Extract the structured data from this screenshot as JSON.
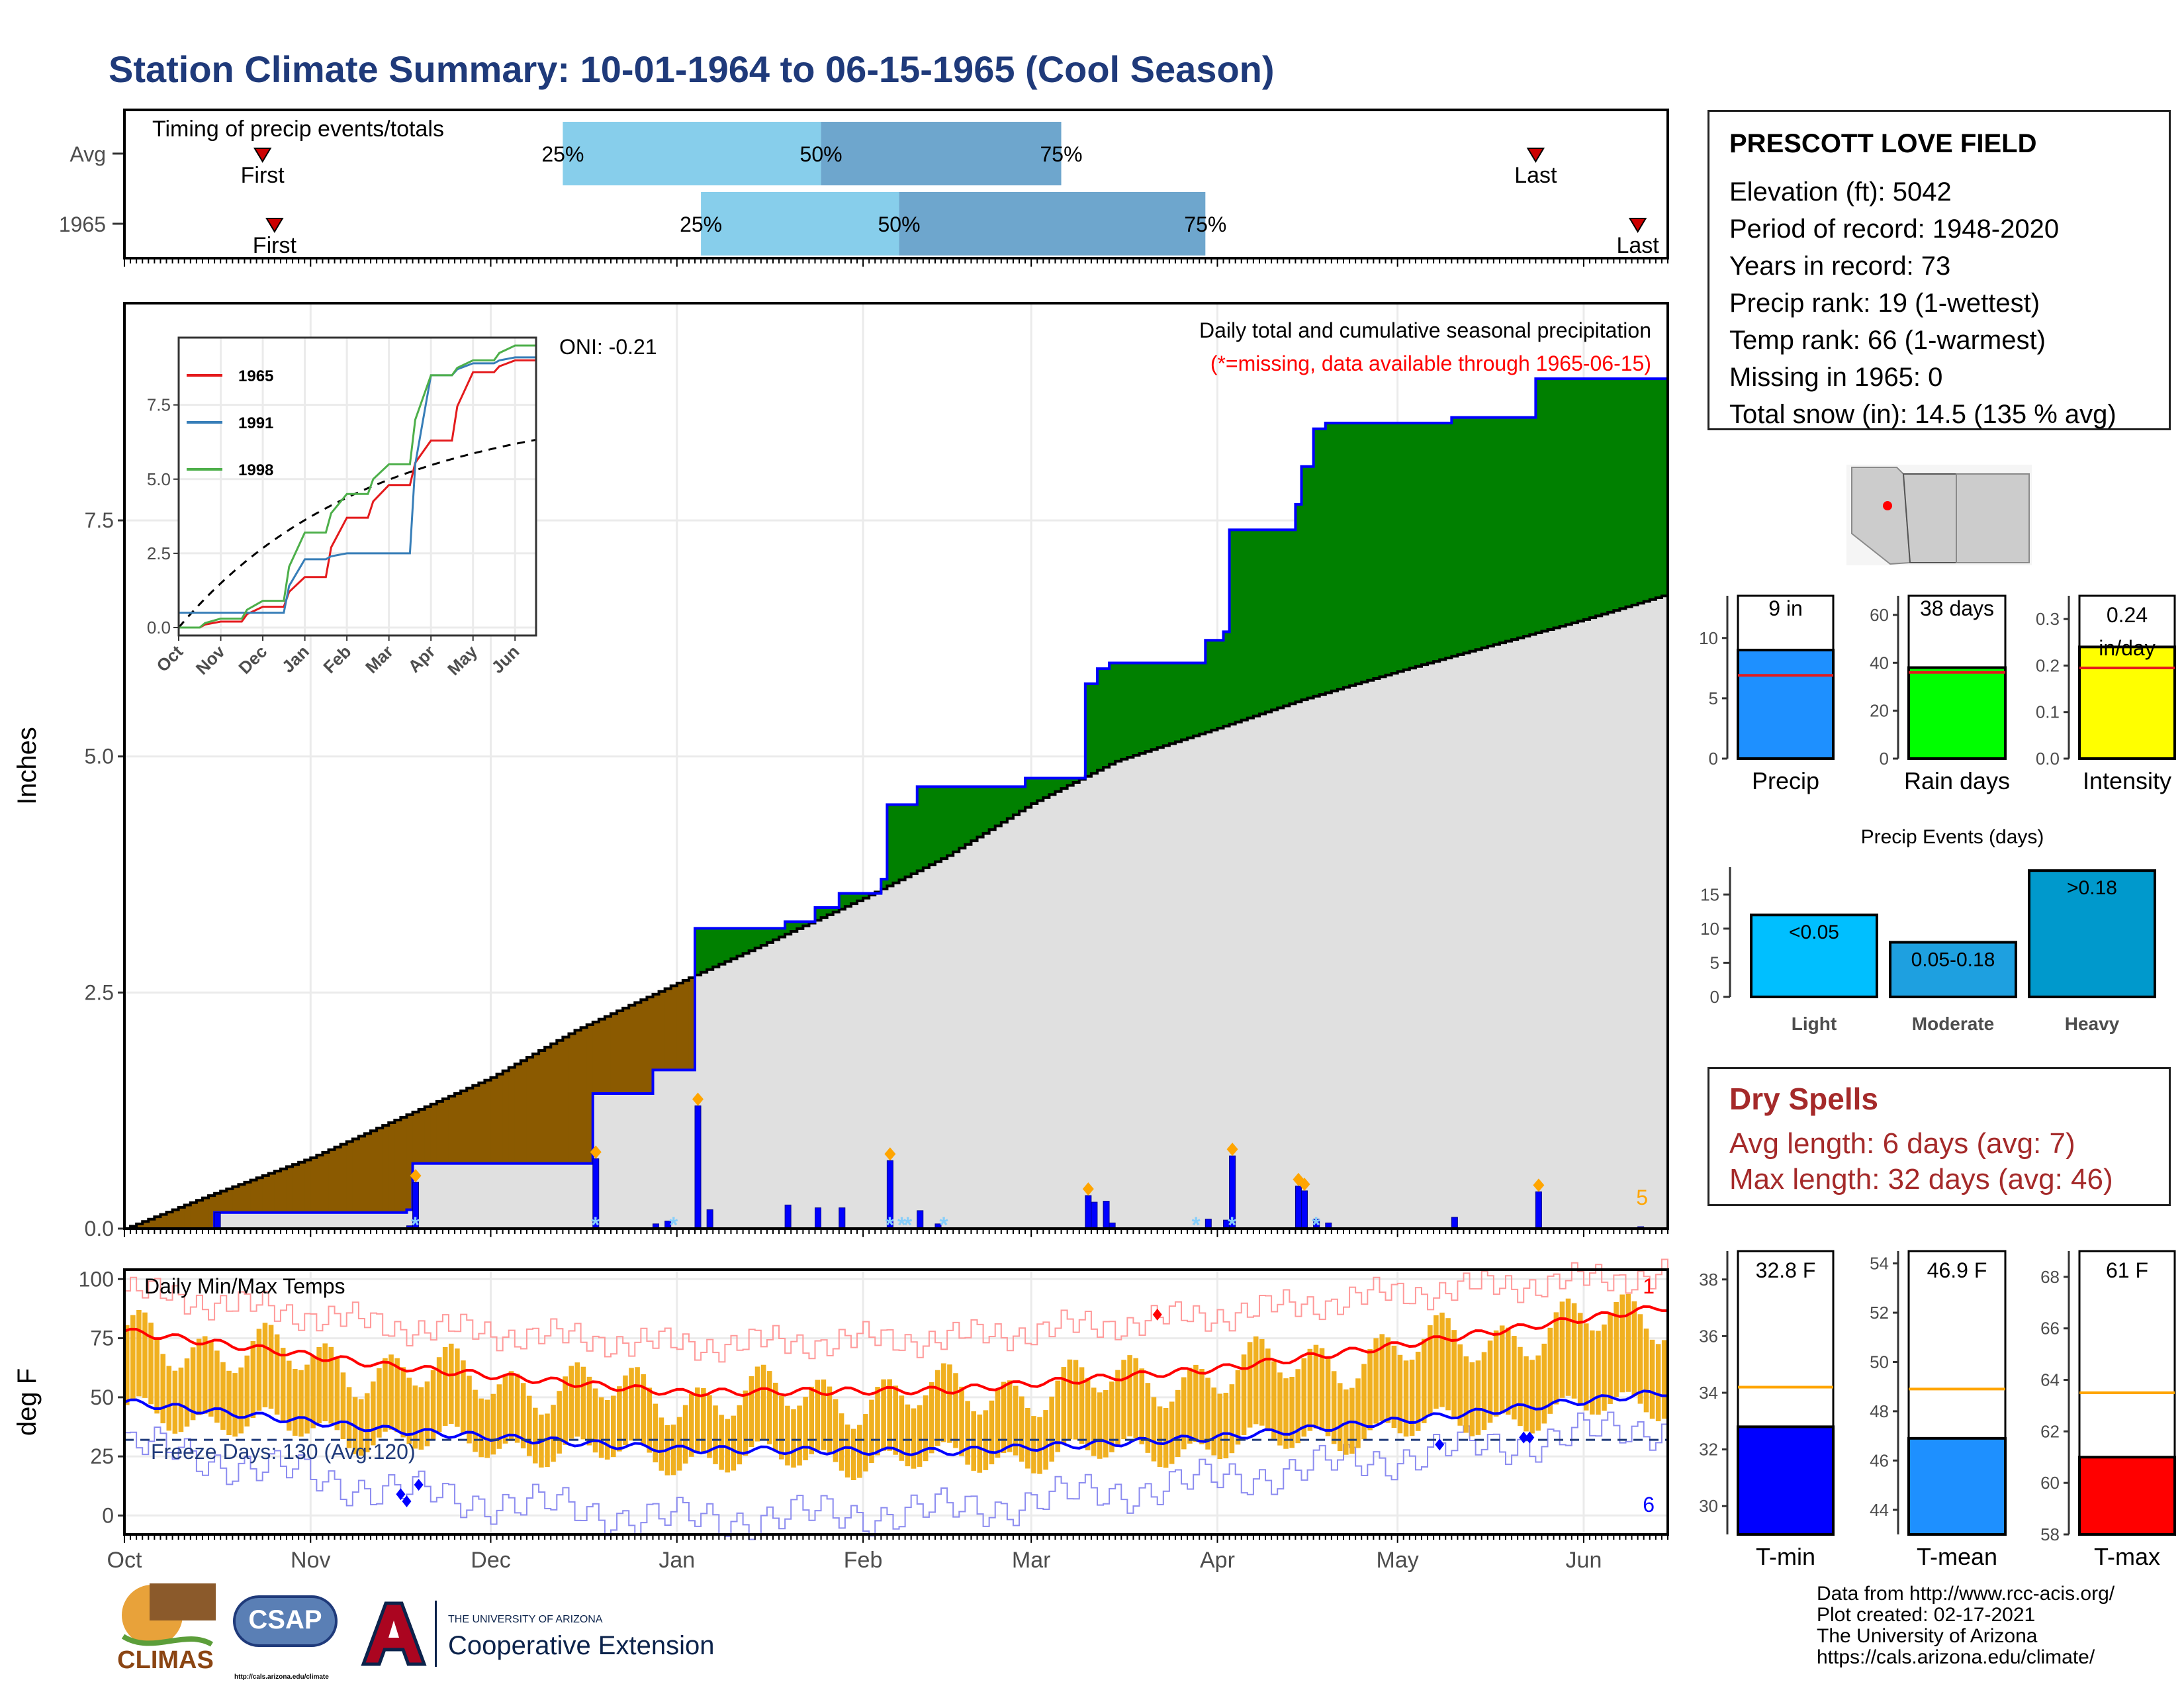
{
  "title": "Station Climate Summary: 10-01-1964 to 06-15-1965 (Cool Season)",
  "colors": {
    "title": "#1f3a7a",
    "q1": "#87ceeb",
    "q2": "#6ea6cd",
    "wet": "#008000",
    "dry": "#8b5a00",
    "cumavg": "#e0e0e0",
    "daily": "#0000ff",
    "snow": "#87cefa",
    "tmax": "#ff0000",
    "tmin": "#0000ff",
    "bar": "#f0b020",
    "red_marker": "#ff0000",
    "accent_brown": "#a52a2a"
  },
  "timing": {
    "label": "Timing of precip events/totals",
    "rows": [
      "Avg",
      "1965"
    ],
    "first_label": "First",
    "last_label": "Last",
    "q25": "25%",
    "q50": "50%",
    "q75": "75%",
    "avg": {
      "first": "1964-10-24",
      "q25": "1964-12-13",
      "q50": "1965-01-25",
      "q75": "1965-03-06",
      "last": "1965-05-24"
    },
    "y1965": {
      "first": "1964-10-26",
      "q25": "1965-01-05",
      "q50": "1965-02-07",
      "q75": "1965-03-30",
      "last": "1965-06-10"
    }
  },
  "station": {
    "name": "PRESCOTT LOVE FIELD",
    "lines": [
      "Elevation (ft): 5042",
      "Period of record: 1948-2020",
      "Years in record: 73",
      "Precip rank: 19 (1-wettest)",
      "Temp rank: 66 (1-warmest)",
      "Missing in 1965: 0",
      "Total snow (in): 14.5 (135 % avg)"
    ]
  },
  "precip_chart": {
    "ylabel": "Inches",
    "yticks": [
      "0.0",
      "2.5",
      "5.0",
      "7.5"
    ],
    "caption": "Daily total and cumulative seasonal precipitation",
    "missing_note": "(*=missing, data available through 1965-06-15)",
    "oni": "ONI: -0.21",
    "max_label": "5"
  },
  "inset": {
    "yticks": [
      "0.0",
      "2.5",
      "5.0",
      "7.5"
    ],
    "xticks": [
      "Oct",
      "Nov",
      "Dec",
      "Jan",
      "Feb",
      "Mar",
      "Apr",
      "May",
      "Jun"
    ],
    "legend": [
      "1965",
      "1991",
      "1998"
    ]
  },
  "temp_chart": {
    "ylabel": "deg F",
    "label": "Daily Min/Max Temps",
    "freeze": "Freeze Days: 130 (Avg:120)",
    "yticks": [
      "0",
      "25",
      "50",
      "75",
      "100"
    ],
    "max_count": "1",
    "min_count": "6"
  },
  "months": [
    "Oct",
    "Nov",
    "Dec",
    "Jan",
    "Feb",
    "Mar",
    "Apr",
    "May",
    "Jun"
  ],
  "summary_bars": [
    {
      "name": "Precip",
      "value": 9,
      "label": "9 in",
      "avg": 6.9,
      "ymax": 13.5,
      "ticks": [
        "0",
        "5",
        "10"
      ],
      "color": "#1e90ff"
    },
    {
      "name": "Rain days",
      "value": 38,
      "label": "38 days",
      "avg": 36,
      "ymax": 68,
      "ticks": [
        "0",
        "20",
        "40",
        "60"
      ],
      "color": "#00ff00"
    },
    {
      "name": "Intensity",
      "value": 0.24,
      "label": "0.24 in/day",
      "avg": 0.195,
      "ymax": 0.35,
      "ticks": [
        "0.0",
        "0.1",
        "0.2",
        "0.3"
      ],
      "color": "#ffff00"
    }
  ],
  "events": {
    "title": "Precip Events (days)",
    "ticks": [
      "0",
      "5",
      "10",
      "15"
    ],
    "bars": [
      {
        "name": "Light",
        "label": "<0.05",
        "value": 12,
        "color": "#00bfff"
      },
      {
        "name": "Moderate",
        "label": "0.05-0.18",
        "value": 8,
        "color": "#1ea0e0"
      },
      {
        "name": "Heavy",
        "label": ">0.18",
        "value": 18.5,
        "color": "#0099cc"
      }
    ]
  },
  "dry_spells": {
    "title": "Dry Spells",
    "avg": "Avg length: 6 days (avg: 7)",
    "max": "Max length: 32 days (avg: 46)"
  },
  "temp_bars": [
    {
      "name": "T-min",
      "value": 32.8,
      "label": "32.8 F",
      "avg": 34.2,
      "ymin": 29,
      "ymax": 39,
      "ticks": [
        "30",
        "32",
        "34",
        "36",
        "38"
      ],
      "color": "#0000ff"
    },
    {
      "name": "T-mean",
      "value": 46.9,
      "label": "46.9 F",
      "avg": 48.9,
      "ymin": 43,
      "ymax": 54.5,
      "ticks": [
        "44",
        "46",
        "48",
        "50",
        "52",
        "54"
      ],
      "color": "#1e90ff"
    },
    {
      "name": "T-max",
      "value": 61,
      "label": "61 F",
      "avg": 63.5,
      "ymin": 58,
      "ymax": 69,
      "ticks": [
        "58",
        "60",
        "62",
        "64",
        "66",
        "68"
      ],
      "color": "#ff0000"
    }
  ],
  "credits": [
    "Data from http://www.rcc-acis.org/",
    "Plot created: 02-17-2021",
    "The University of Arizona",
    "https://cals.arizona.edu/climate/"
  ],
  "logos": {
    "climas": "CLIMAS",
    "csap": "CSAP",
    "csap_url": "http://cals.arizona.edu/climate",
    "ua_small": "THE UNIVERSITY OF ARIZONA",
    "ua_big": "Cooperative Extension"
  },
  "chart_data": [
    {
      "type": "area",
      "title": "Daily total and cumulative seasonal precipitation",
      "ylabel": "Inches",
      "ylim": [
        0,
        9.8
      ],
      "x_range": [
        "1964-10-01",
        "1965-06-15"
      ],
      "cumulative_1965_steps": [
        [
          "1964-10-01",
          0
        ],
        [
          "1964-10-16",
          0.17
        ],
        [
          "1964-11-17",
          0.2
        ],
        [
          "1964-11-18",
          0.69
        ],
        [
          "1964-12-18",
          1.43
        ],
        [
          "1964-12-28",
          1.68
        ],
        [
          "1965-01-04",
          3.18
        ],
        [
          "1965-01-19",
          3.25
        ],
        [
          "1965-01-24",
          3.4
        ],
        [
          "1965-01-28",
          3.55
        ],
        [
          "1965-02-04",
          3.7
        ],
        [
          "1965-02-05",
          4.49
        ],
        [
          "1965-02-10",
          4.68
        ],
        [
          "1965-02-28",
          4.77
        ],
        [
          "1965-03-10",
          5.77
        ],
        [
          "1965-03-12",
          5.93
        ],
        [
          "1965-03-14",
          5.99
        ],
        [
          "1965-03-30",
          6.23
        ],
        [
          "1965-04-02",
          6.32
        ],
        [
          "1965-04-03",
          7.4
        ],
        [
          "1965-04-14",
          7.67
        ],
        [
          "1965-04-15",
          8.07
        ],
        [
          "1965-04-17",
          8.47
        ],
        [
          "1965-04-19",
          8.53
        ],
        [
          "1965-05-10",
          8.59
        ],
        [
          "1965-05-24",
          9.0
        ],
        [
          "1965-06-14",
          9.0
        ]
      ],
      "cumulative_avg": [
        [
          "1964-10-01",
          0
        ],
        [
          "1964-10-15",
          0.35
        ],
        [
          "1964-11-01",
          0.75
        ],
        [
          "1964-11-15",
          1.15
        ],
        [
          "1964-12-01",
          1.6
        ],
        [
          "1964-12-15",
          2.1
        ],
        [
          "1965-01-01",
          2.6
        ],
        [
          "1965-01-15",
          3.0
        ],
        [
          "1965-02-01",
          3.5
        ],
        [
          "1965-02-15",
          3.95
        ],
        [
          "1965-03-01",
          4.5
        ],
        [
          "1965-03-15",
          4.95
        ],
        [
          "1965-04-01",
          5.3
        ],
        [
          "1965-04-15",
          5.6
        ],
        [
          "1965-05-01",
          5.9
        ],
        [
          "1965-05-15",
          6.15
        ],
        [
          "1965-06-01",
          6.45
        ],
        [
          "1965-06-14",
          6.7
        ]
      ],
      "daily_precip": [
        [
          "1964-10-16",
          0.17
        ],
        [
          "1964-11-17",
          0.03
        ],
        [
          "1964-11-18",
          0.49
        ],
        [
          "1964-12-18",
          0.74
        ],
        [
          "1964-12-28",
          0.05
        ],
        [
          "1964-12-30",
          0.08
        ],
        [
          "1965-01-04",
          1.3
        ],
        [
          "1965-01-06",
          0.2
        ],
        [
          "1965-01-19",
          0.25
        ],
        [
          "1965-01-24",
          0.22
        ],
        [
          "1965-01-28",
          0.22
        ],
        [
          "1965-02-05",
          0.72
        ],
        [
          "1965-02-10",
          0.19
        ],
        [
          "1965-02-13",
          0.05
        ],
        [
          "1965-03-10",
          0.35
        ],
        [
          "1965-03-11",
          0.28
        ],
        [
          "1965-03-13",
          0.29
        ],
        [
          "1965-03-14",
          0.06
        ],
        [
          "1965-03-30",
          0.1
        ],
        [
          "1965-04-02",
          0.09
        ],
        [
          "1965-04-03",
          0.77
        ],
        [
          "1965-04-14",
          0.45
        ],
        [
          "1965-04-15",
          0.4
        ],
        [
          "1965-04-17",
          0.1
        ],
        [
          "1965-04-19",
          0.06
        ],
        [
          "1965-05-10",
          0.12
        ],
        [
          "1965-05-24",
          0.39
        ],
        [
          "1965-06-10",
          0.02
        ]
      ],
      "snow_markers": [
        "1964-11-18",
        "1964-12-18",
        "1964-12-31",
        "1965-02-05",
        "1965-02-07",
        "1965-02-08",
        "1965-02-14",
        "1965-03-28",
        "1965-04-03",
        "1965-04-17"
      ]
    },
    {
      "type": "line",
      "title": "",
      "x": [
        "Oct",
        "Nov",
        "Dec",
        "Jan",
        "Feb",
        "Mar",
        "Apr",
        "May",
        "Jun"
      ],
      "ylim": [
        0,
        9.5
      ],
      "series": [
        {
          "name": "1965",
          "values": [
            0,
            0.2,
            0.7,
            1.7,
            3.7,
            4.8,
            6.3,
            8.6,
            9.0
          ]
        },
        {
          "name": "1991",
          "values": [
            0.5,
            0.5,
            0.5,
            2.3,
            2.5,
            2.5,
            8.5,
            8.9,
            9.1
          ]
        },
        {
          "name": "1998",
          "values": [
            0,
            0.3,
            0.9,
            3.2,
            4.5,
            5.5,
            8.5,
            9.0,
            9.5
          ]
        }
      ]
    },
    {
      "type": "bar",
      "title": "Daily Min/Max Temps",
      "ylabel": "deg F",
      "ylim": [
        -8,
        104
      ],
      "x_range": [
        "1964-10-01",
        "1965-06-15"
      ],
      "avg_max_points": [
        [
          "1964-10-01",
          78
        ],
        [
          "1964-11-15",
          63
        ],
        [
          "1965-01-01",
          52
        ],
        [
          "1965-02-15",
          53
        ],
        [
          "1965-04-01",
          62
        ],
        [
          "1965-05-01",
          72
        ],
        [
          "1965-06-14",
          88
        ]
      ],
      "avg_min_points": [
        [
          "1964-10-01",
          48
        ],
        [
          "1964-11-15",
          36
        ],
        [
          "1965-01-01",
          28
        ],
        [
          "1965-02-15",
          27
        ],
        [
          "1965-04-01",
          33
        ],
        [
          "1965-05-01",
          40
        ],
        [
          "1965-06-14",
          52
        ]
      ],
      "record_max_points": [
        [
          "1964-10-01",
          95
        ],
        [
          "1964-11-15",
          80
        ],
        [
          "1965-01-01",
          72
        ],
        [
          "1965-02-15",
          75
        ],
        [
          "1965-04-01",
          85
        ],
        [
          "1965-05-01",
          94
        ],
        [
          "1965-06-14",
          102
        ]
      ],
      "record_min_points": [
        [
          "1964-10-01",
          30
        ],
        [
          "1964-11-15",
          10
        ],
        [
          "1965-01-01",
          -2
        ],
        [
          "1965-02-15",
          2
        ],
        [
          "1965-04-01",
          15
        ],
        [
          "1965-05-01",
          25
        ],
        [
          "1965-06-14",
          38
        ]
      ],
      "freeze_line": 32
    }
  ]
}
